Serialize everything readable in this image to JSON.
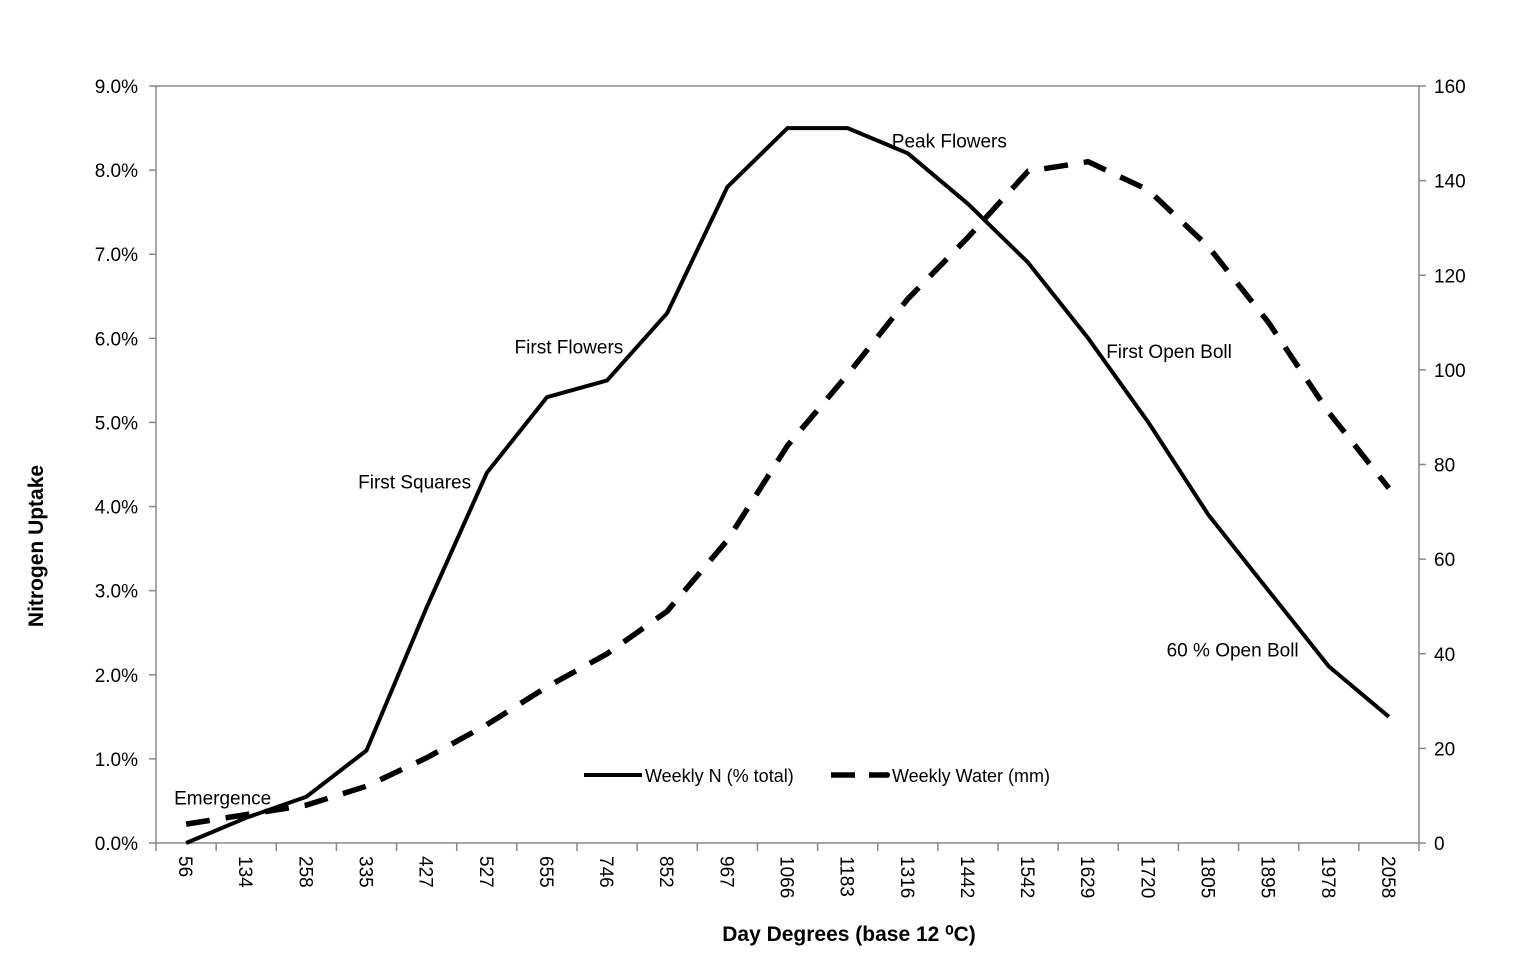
{
  "chart_data": {
    "type": "line",
    "xlabel": "Day Degrees (base 12 ⁰C)",
    "ylabel": "Nitrogen Uptake",
    "categories": [
      "56",
      "134",
      "258",
      "335",
      "427",
      "527",
      "655",
      "746",
      "852",
      "967",
      "1066",
      "1183",
      "1316",
      "1442",
      "1542",
      "1629",
      "1720",
      "1805",
      "1895",
      "1978",
      "2058"
    ],
    "y_left": {
      "ylim": [
        0,
        9
      ],
      "ticks": [
        0,
        1,
        2,
        3,
        4,
        5,
        6,
        7,
        8,
        9
      ],
      "tick_labels": [
        "0.0%",
        "1.0%",
        "2.0%",
        "3.0%",
        "4.0%",
        "5.0%",
        "6.0%",
        "7.0%",
        "8.0%",
        "9.0%"
      ]
    },
    "y_right": {
      "ylim": [
        0,
        160
      ],
      "ticks": [
        0,
        20,
        40,
        60,
        80,
        100,
        120,
        140,
        160
      ],
      "tick_labels": [
        "0",
        "20",
        "40",
        "60",
        "80",
        "100",
        "120",
        "140",
        "160"
      ]
    },
    "series": [
      {
        "name": "Weekly N (% total)",
        "axis": "left",
        "style": "solid",
        "values": [
          0.0,
          0.3,
          0.55,
          1.1,
          2.8,
          4.4,
          5.3,
          5.5,
          6.3,
          7.8,
          8.5,
          8.5,
          8.2,
          7.6,
          6.9,
          6.0,
          5.0,
          3.9,
          3.0,
          2.1,
          1.5
        ]
      },
      {
        "name": "Weekly Water (mm)",
        "axis": "right",
        "style": "dashed",
        "values": [
          4,
          6,
          8,
          12,
          18,
          25,
          33,
          40,
          49,
          64,
          84,
          99,
          115,
          128,
          142,
          144,
          138,
          126,
          110,
          91,
          75
        ]
      }
    ],
    "annotations": [
      {
        "text": "Emergence",
        "category": "56",
        "value": 0.4
      },
      {
        "text": "First Squares",
        "category": "427",
        "value": 4.3
      },
      {
        "text": "First Flowers",
        "category": "655",
        "value": 5.9
      },
      {
        "text": "Peak Flowers",
        "category": "1316",
        "value": 8.35
      },
      {
        "text": "First Open Boll",
        "category": "1629",
        "value": 5.85
      },
      {
        "text": "60 % Open Boll",
        "category": "1895",
        "value": 2.3
      }
    ],
    "legend": {
      "placement": "bottom-center"
    },
    "grid": false
  }
}
